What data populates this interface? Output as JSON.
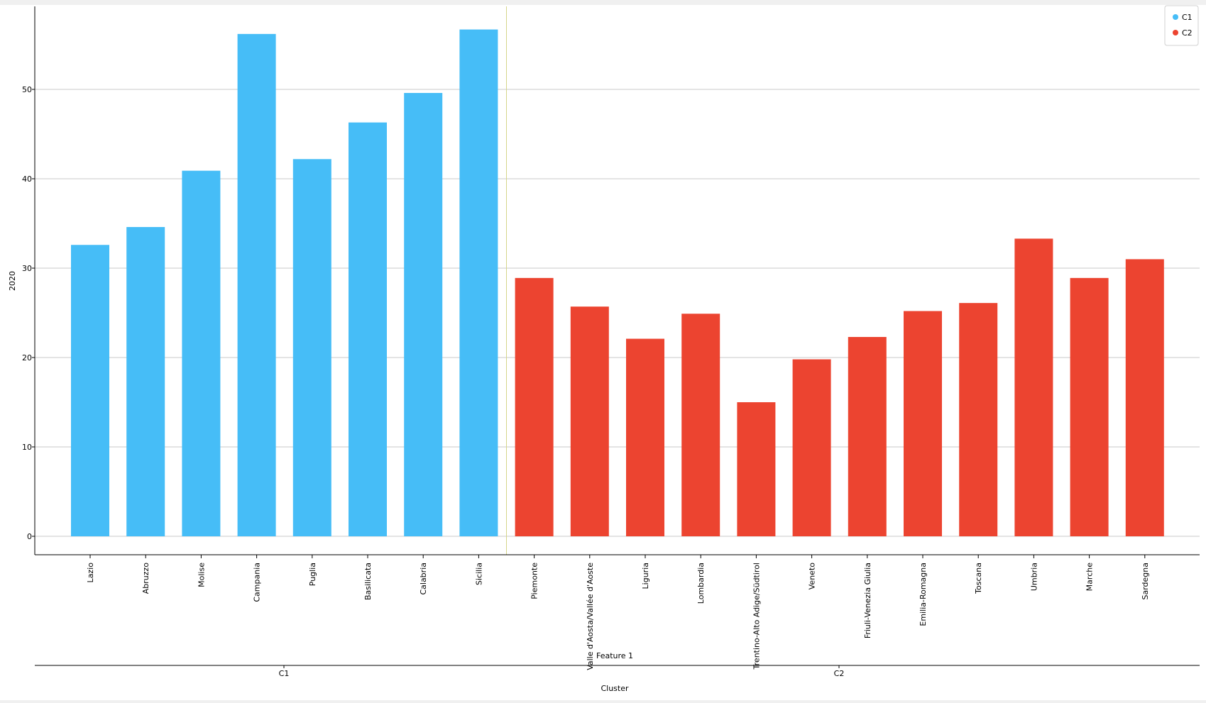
{
  "chart_data": {
    "type": "bar",
    "ylabel": "2020",
    "xlabel": "Feature 1",
    "group_axis_label": "Cluster",
    "ylim": [
      0,
      58
    ],
    "yticks": [
      0,
      10,
      20,
      30,
      40,
      50
    ],
    "grid": true,
    "legend_position": "top-right",
    "categories": [
      "Lazio",
      "Abruzzo",
      "Molise",
      "Campania",
      "Puglia",
      "Basilicata",
      "Calabria",
      "Sicilia",
      "Piemonte",
      "Valle d'Aosta/Vallée d'Aoste",
      "Liguria",
      "Lombardia",
      "Trentino-Alto Adige/Südtirol",
      "Veneto",
      "Friuli-Venezia Giulia",
      "Emilia-Romagna",
      "Toscana",
      "Umbria",
      "Marche",
      "Sardegna"
    ],
    "values": [
      32.6,
      34.6,
      40.9,
      56.2,
      42.2,
      46.3,
      49.6,
      56.7,
      28.9,
      25.7,
      22.1,
      24.9,
      15.0,
      19.8,
      22.3,
      25.2,
      26.1,
      33.3,
      28.9,
      31.0
    ],
    "clusters": [
      "C1",
      "C1",
      "C1",
      "C1",
      "C1",
      "C1",
      "C1",
      "C1",
      "C2",
      "C2",
      "C2",
      "C2",
      "C2",
      "C2",
      "C2",
      "C2",
      "C2",
      "C2",
      "C2",
      "C2"
    ],
    "groups": [
      {
        "name": "C1",
        "color": "#46bdf7"
      },
      {
        "name": "C2",
        "color": "#ec4430"
      }
    ],
    "divider_color": "#d6d68a",
    "grid_color": "#c8c8c8"
  }
}
